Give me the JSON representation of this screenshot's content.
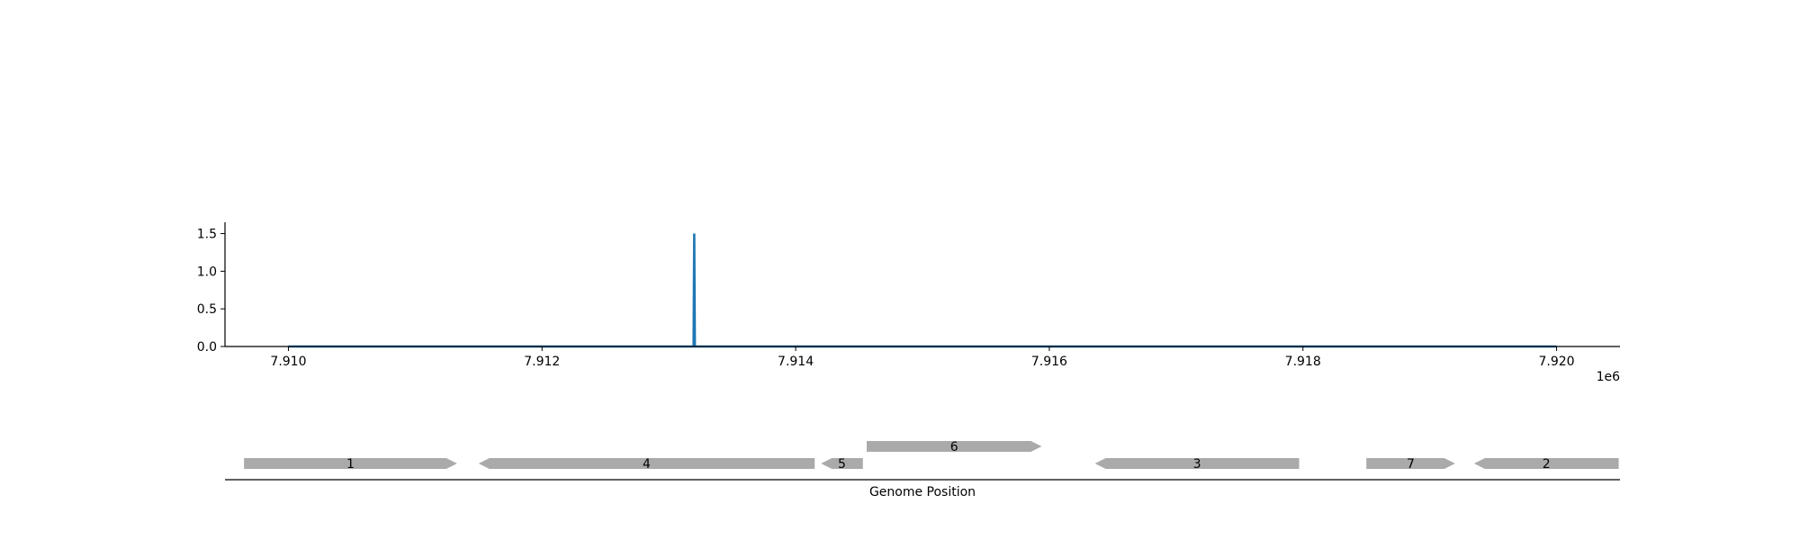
{
  "chart_data": [
    {
      "type": "line",
      "title": "",
      "xlabel": "",
      "ylabel": "",
      "xlim": [
        7909500,
        7920500
      ],
      "ylim": [
        0,
        1.65
      ],
      "x_ticks": [
        7910000,
        7912000,
        7914000,
        7916000,
        7918000,
        7920000
      ],
      "x_tick_labels": [
        "7.910",
        "7.912",
        "7.914",
        "7.916",
        "7.918",
        "7.920"
      ],
      "x_offset_label": "1e6",
      "y_ticks": [
        0.0,
        0.5,
        1.0,
        1.5
      ],
      "y_tick_labels": [
        "0.0",
        "0.5",
        "1.0",
        "1.5"
      ],
      "grid": false,
      "series": [
        {
          "color": "#1f77b4",
          "x": [
            7910000,
            7913195,
            7913200,
            7913205,
            7920000
          ],
          "y": [
            0,
            0,
            1.5,
            0,
            0
          ]
        }
      ]
    },
    {
      "type": "gene_track",
      "xlabel": "Genome Position",
      "xlim": [
        7909500,
        7920500
      ],
      "feature_color": "#aaaaaa",
      "features": [
        {
          "label": "1",
          "start": 7909650,
          "end": 7911330,
          "strand": 1,
          "level": 0
        },
        {
          "label": "4",
          "start": 7911500,
          "end": 7914150,
          "strand": -1,
          "level": 0
        },
        {
          "label": "5",
          "start": 7914200,
          "end": 7914530,
          "strand": -1,
          "level": 0
        },
        {
          "label": "6",
          "start": 7914560,
          "end": 7915940,
          "strand": 1,
          "level": 1
        },
        {
          "label": "3",
          "start": 7916360,
          "end": 7917970,
          "strand": -1,
          "level": 0
        },
        {
          "label": "7",
          "start": 7918500,
          "end": 7919200,
          "strand": 1,
          "level": 0
        },
        {
          "label": "2",
          "start": 7919350,
          "end": 7920490,
          "strand": -1,
          "level": 0
        }
      ]
    }
  ]
}
